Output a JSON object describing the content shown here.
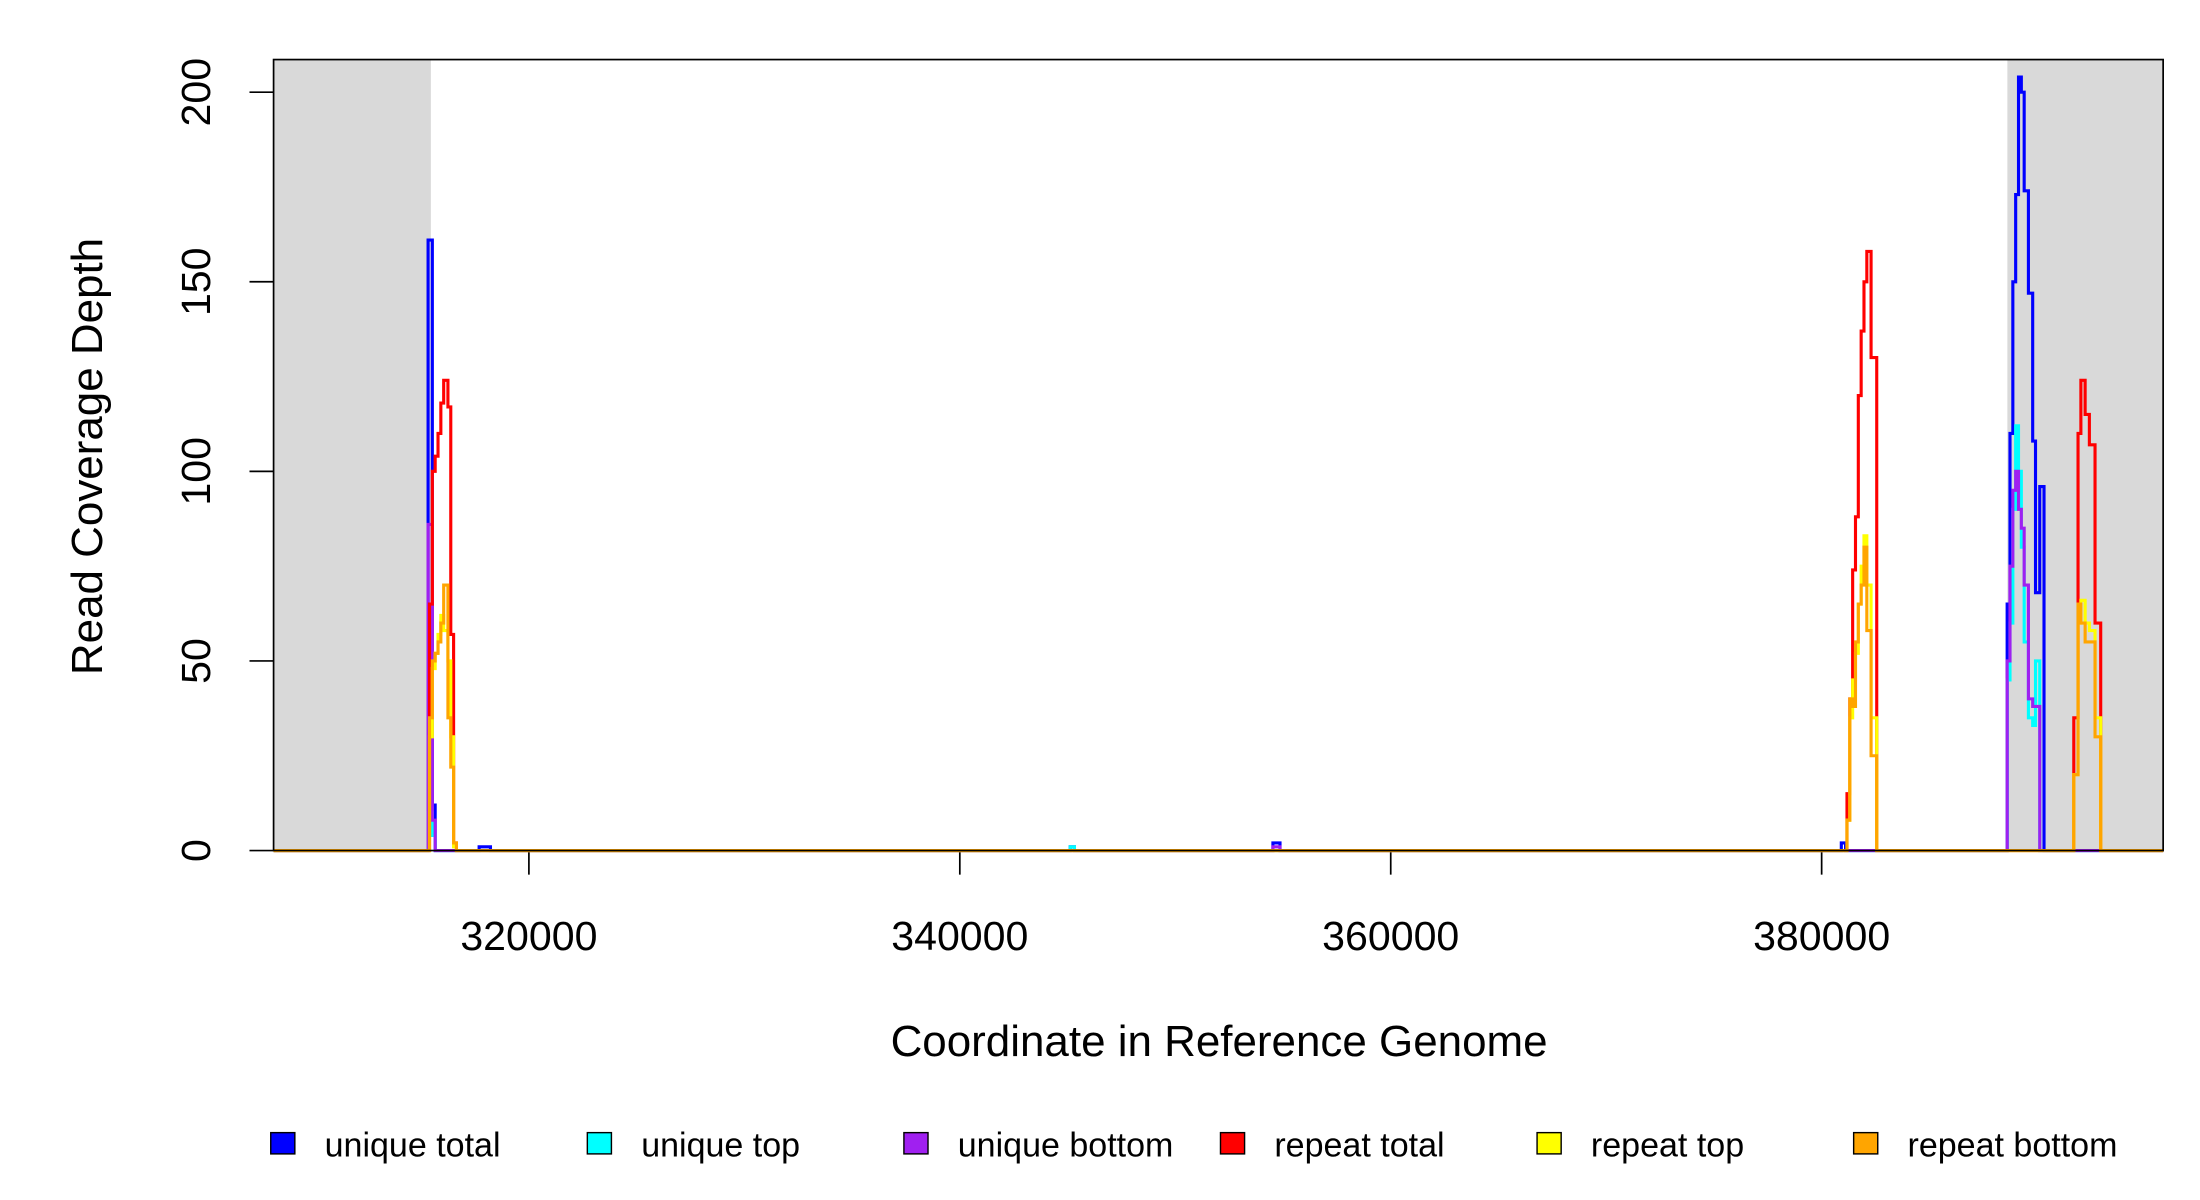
{
  "chart_data": {
    "type": "line",
    "step": true,
    "xlabel": "Coordinate in Reference Genome",
    "ylabel": "Read Coverage Depth",
    "xlim": [
      308150,
      395850
    ],
    "ylim": [
      0,
      208.6
    ],
    "xticks": [
      320000,
      340000,
      360000,
      380000
    ],
    "yticks": [
      0,
      50,
      100,
      150,
      200
    ],
    "shaded_regions": [
      [
        308150,
        315450
      ],
      [
        388620,
        395850
      ]
    ],
    "shade_color": "#d9d9d9",
    "legend": "bottom",
    "series": [
      {
        "name": "unique total",
        "color": "#0000ff",
        "x": [
          308150,
          315321,
          315518,
          315650,
          317690,
          318216,
          345124,
          345320,
          354532,
          354861,
          380913,
          381110,
          388610,
          388742,
          388874,
          389005,
          389137,
          389268,
          389400,
          389597,
          389795,
          389926,
          390123,
          390321,
          395850
        ],
        "values": [
          0,
          161,
          12,
          0,
          1,
          0,
          1,
          0,
          2,
          0,
          2,
          0,
          65,
          110,
          150,
          173,
          204,
          200,
          174,
          147,
          108,
          68,
          96,
          0,
          0
        ]
      },
      {
        "name": "unique top",
        "color": "#00ffff",
        "x": [
          308150,
          315321,
          315518,
          315650,
          345124,
          345320,
          388610,
          388742,
          388874,
          389005,
          389137,
          389268,
          389400,
          389597,
          389795,
          389926,
          390123,
          390321,
          395850
        ],
        "values": [
          0,
          10,
          4,
          0,
          1,
          0,
          45,
          60,
          90,
          112,
          100,
          80,
          55,
          35,
          33,
          50,
          0,
          0,
          0
        ]
      },
      {
        "name": "unique bottom",
        "color": "#a020f0",
        "x": [
          308150,
          315321,
          315518,
          315650,
          354532,
          354861,
          388610,
          388742,
          388874,
          389005,
          389137,
          389268,
          389400,
          389597,
          389795,
          389926,
          390123,
          390321,
          395850
        ],
        "values": [
          0,
          86,
          8,
          0,
          1,
          0,
          50,
          75,
          95,
          100,
          90,
          85,
          70,
          40,
          38,
          38,
          0,
          0,
          0
        ]
      },
      {
        "name": "repeat total",
        "color": "#ff0000",
        "x": [
          308150,
          315387,
          315518,
          315650,
          315782,
          315913,
          316045,
          316242,
          316374,
          316505,
          316637,
          381176,
          381308,
          381439,
          381571,
          381702,
          381834,
          381965,
          382097,
          382294,
          382557,
          391703,
          391900,
          392032,
          392229,
          392426,
          392689,
          392952,
          395850
        ],
        "values": [
          0,
          65,
          100,
          104,
          110,
          118,
          124,
          117,
          57,
          2,
          0,
          15,
          40,
          74,
          88,
          120,
          137,
          150,
          158,
          130,
          0,
          35,
          110,
          124,
          115,
          107,
          60,
          0,
          0
        ]
      },
      {
        "name": "repeat top",
        "color": "#ffff00",
        "x": [
          308150,
          315387,
          315518,
          315650,
          315782,
          315913,
          316045,
          316242,
          316374,
          316505,
          316637,
          381176,
          381308,
          381439,
          381571,
          381702,
          381834,
          381965,
          382097,
          382294,
          382557,
          391703,
          391900,
          392032,
          392229,
          392426,
          392689,
          392952,
          395850
        ],
        "values": [
          0,
          30,
          48,
          52,
          57,
          62,
          58,
          50,
          30,
          1,
          0,
          8,
          35,
          45,
          52,
          65,
          75,
          83,
          70,
          35,
          0,
          20,
          60,
          66,
          60,
          58,
          35,
          0,
          0
        ]
      },
      {
        "name": "repeat bottom",
        "color": "#ffa500",
        "x": [
          308150,
          315387,
          315518,
          315650,
          315782,
          315913,
          316045,
          316242,
          316374,
          316505,
          316637,
          381176,
          381308,
          381439,
          381571,
          381702,
          381834,
          381965,
          382097,
          382294,
          382557,
          391703,
          391900,
          392032,
          392229,
          392426,
          392689,
          392952,
          395850
        ],
        "values": [
          0,
          35,
          50,
          52,
          55,
          60,
          70,
          35,
          22,
          2,
          0,
          8,
          40,
          38,
          55,
          65,
          70,
          80,
          58,
          25,
          0,
          20,
          65,
          60,
          55,
          55,
          30,
          0,
          0
        ]
      }
    ]
  }
}
